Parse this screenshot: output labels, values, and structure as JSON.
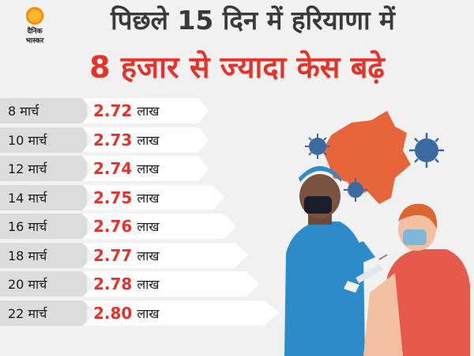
{
  "brand": {
    "name_line1": "दैनिक",
    "name_line2": "भास्कर"
  },
  "title": {
    "line1": "पिछले 15 दिन में हरियाणा में",
    "line2": "8 हजार से ज्यादा केस बढ़े"
  },
  "colors": {
    "accent": "#e63329",
    "background": "#f1f1f1"
  },
  "rows": [
    {
      "date": "8 मार्च",
      "value": "2.72",
      "unit": "लाख"
    },
    {
      "date": "10 मार्च",
      "value": "2.73",
      "unit": "लाख"
    },
    {
      "date": "12 मार्च",
      "value": "2.74",
      "unit": "लाख"
    },
    {
      "date": "14 मार्च",
      "value": "2.75",
      "unit": "लाख"
    },
    {
      "date": "16 मार्च",
      "value": "2.76",
      "unit": "लाख"
    },
    {
      "date": "18 मार्च",
      "value": "2.77",
      "unit": "लाख"
    },
    {
      "date": "20 मार्च",
      "value": "2.78",
      "unit": "लाख"
    },
    {
      "date": "22 मार्च",
      "value": "2.80",
      "unit": "लाख"
    }
  ],
  "illustration": {
    "icons": [
      "haryana-map-icon",
      "virus-icon",
      "nurse-icon",
      "patient-icon",
      "syringe-icon"
    ]
  }
}
